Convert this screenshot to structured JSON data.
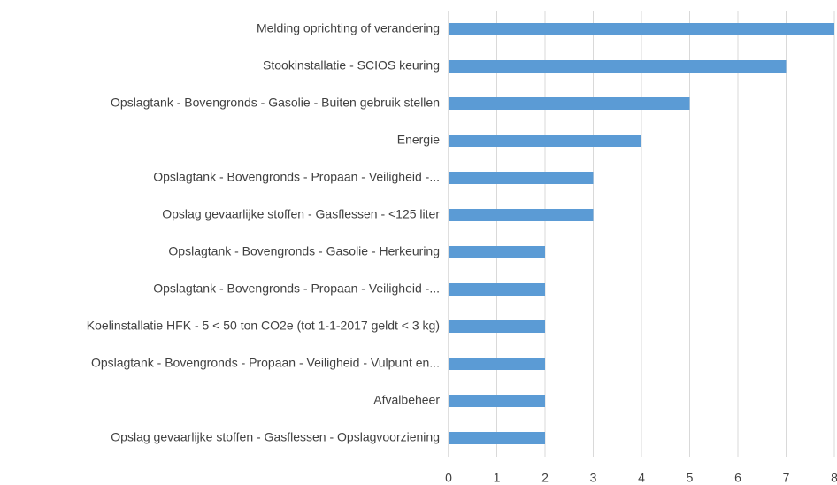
{
  "chart_data": {
    "type": "bar",
    "orientation": "horizontal",
    "categories": [
      "Melding oprichting of verandering",
      "Stookinstallatie - SCIOS keuring",
      "Opslagtank - Bovengronds - Gasolie - Buiten gebruik stellen",
      "Energie",
      "Opslagtank - Bovengronds - Propaan - Veiligheid -...",
      "Opslag gevaarlijke stoffen - Gasflessen - <125 liter",
      "Opslagtank - Bovengronds - Gasolie - Herkeuring",
      "Opslagtank - Bovengronds - Propaan - Veiligheid -...",
      "Koelinstallatie HFK - 5 < 50 ton CO2e (tot 1-1-2017 geldt < 3 kg)",
      "Opslagtank - Bovengronds - Propaan - Veiligheid - Vulpunt en...",
      "Afvalbeheer",
      "Opslag gevaarlijke stoffen - Gasflessen - Opslagvoorziening"
    ],
    "values": [
      8,
      7,
      5,
      4,
      3,
      3,
      2,
      2,
      2,
      2,
      2,
      2
    ],
    "color": "#5b9bd5",
    "xlim": [
      0,
      8
    ],
    "xticks": [
      0,
      1,
      2,
      3,
      4,
      5,
      6,
      7,
      8
    ],
    "grid": true
  }
}
